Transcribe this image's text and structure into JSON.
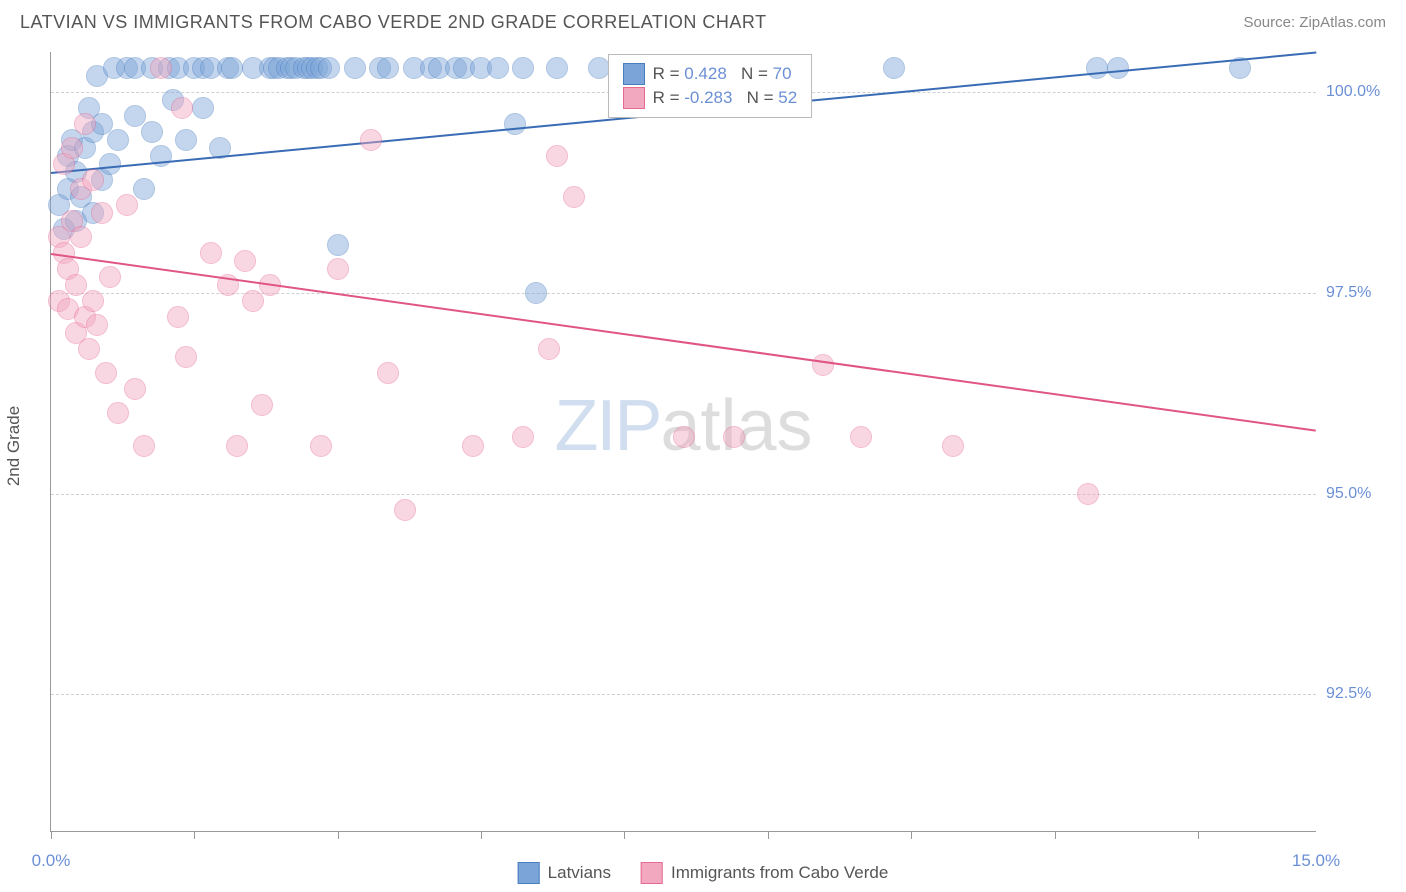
{
  "header": {
    "title": "LATVIAN VS IMMIGRANTS FROM CABO VERDE 2ND GRADE CORRELATION CHART",
    "source_label": "Source: ZipAtlas.com"
  },
  "chart": {
    "type": "scatter",
    "ylabel": "2nd Grade",
    "xlim": [
      0,
      15
    ],
    "ylim": [
      90.8,
      100.5
    ],
    "yticks": [
      92.5,
      95.0,
      97.5,
      100.0
    ],
    "ytick_labels": [
      "92.5%",
      "95.0%",
      "97.5%",
      "100.0%"
    ],
    "xticks": [
      0.0,
      1.7,
      3.4,
      5.1,
      6.8,
      8.5,
      10.2,
      11.9,
      13.6
    ],
    "xlabel_min": "0.0%",
    "xlabel_max": "15.0%",
    "background_color": "#ffffff",
    "grid_color": "#d0d0d0",
    "point_radius": 11,
    "point_opacity": 0.45,
    "watermark_zip": "ZIP",
    "watermark_atlas": "atlas",
    "series": [
      {
        "name": "Latvians",
        "color_fill": "#7ba5d8",
        "color_stroke": "#4a7cc0",
        "R": "0.428",
        "N": "70",
        "trend": {
          "x1": 0,
          "y1": 99.0,
          "x2": 15,
          "y2": 100.5,
          "color": "#3a6cb5"
        },
        "points": [
          [
            0.1,
            98.6
          ],
          [
            0.15,
            98.3
          ],
          [
            0.2,
            98.8
          ],
          [
            0.2,
            99.2
          ],
          [
            0.25,
            99.4
          ],
          [
            0.3,
            98.4
          ],
          [
            0.3,
            99.0
          ],
          [
            0.35,
            98.7
          ],
          [
            0.4,
            99.3
          ],
          [
            0.45,
            99.8
          ],
          [
            0.5,
            98.5
          ],
          [
            0.5,
            99.5
          ],
          [
            0.55,
            100.2
          ],
          [
            0.6,
            98.9
          ],
          [
            0.6,
            99.6
          ],
          [
            0.7,
            99.1
          ],
          [
            0.75,
            100.3
          ],
          [
            0.8,
            99.4
          ],
          [
            0.9,
            100.3
          ],
          [
            1.0,
            99.7
          ],
          [
            1.0,
            100.3
          ],
          [
            1.1,
            98.8
          ],
          [
            1.2,
            99.5
          ],
          [
            1.2,
            100.3
          ],
          [
            1.3,
            99.2
          ],
          [
            1.4,
            100.3
          ],
          [
            1.45,
            99.9
          ],
          [
            1.5,
            100.3
          ],
          [
            1.6,
            99.4
          ],
          [
            1.7,
            100.3
          ],
          [
            1.8,
            99.8
          ],
          [
            1.8,
            100.3
          ],
          [
            1.9,
            100.3
          ],
          [
            2.0,
            99.3
          ],
          [
            2.1,
            100.3
          ],
          [
            2.15,
            100.3
          ],
          [
            2.4,
            100.3
          ],
          [
            2.6,
            100.3
          ],
          [
            2.65,
            100.3
          ],
          [
            2.7,
            100.3
          ],
          [
            2.8,
            100.3
          ],
          [
            2.85,
            100.3
          ],
          [
            2.9,
            100.3
          ],
          [
            3.0,
            100.3
          ],
          [
            3.05,
            100.3
          ],
          [
            3.1,
            100.3
          ],
          [
            3.15,
            100.3
          ],
          [
            3.2,
            100.3
          ],
          [
            3.3,
            100.3
          ],
          [
            3.4,
            98.1
          ],
          [
            3.6,
            100.3
          ],
          [
            3.9,
            100.3
          ],
          [
            4.0,
            100.3
          ],
          [
            4.3,
            100.3
          ],
          [
            4.5,
            100.3
          ],
          [
            4.6,
            100.3
          ],
          [
            4.8,
            100.3
          ],
          [
            4.9,
            100.3
          ],
          [
            5.1,
            100.3
          ],
          [
            5.3,
            100.3
          ],
          [
            5.5,
            99.6
          ],
          [
            5.6,
            100.3
          ],
          [
            5.75,
            97.5
          ],
          [
            6.0,
            100.3
          ],
          [
            6.5,
            100.3
          ],
          [
            8.5,
            100.3
          ],
          [
            10.0,
            100.3
          ],
          [
            12.4,
            100.3
          ],
          [
            12.65,
            100.3
          ],
          [
            14.1,
            100.3
          ]
        ]
      },
      {
        "name": "Immigrants from Cabo Verde",
        "color_fill": "#f2a8bf",
        "color_stroke": "#e76a94",
        "R": "-0.283",
        "N": "52",
        "trend": {
          "x1": 0,
          "y1": 98.0,
          "x2": 15,
          "y2": 95.8,
          "color": "#e05585"
        },
        "points": [
          [
            0.1,
            98.2
          ],
          [
            0.1,
            97.4
          ],
          [
            0.15,
            98.0
          ],
          [
            0.15,
            99.1
          ],
          [
            0.2,
            97.3
          ],
          [
            0.2,
            97.8
          ],
          [
            0.25,
            98.4
          ],
          [
            0.25,
            99.3
          ],
          [
            0.3,
            97.0
          ],
          [
            0.3,
            97.6
          ],
          [
            0.35,
            98.2
          ],
          [
            0.35,
            98.8
          ],
          [
            0.4,
            97.2
          ],
          [
            0.4,
            99.6
          ],
          [
            0.45,
            96.8
          ],
          [
            0.5,
            97.4
          ],
          [
            0.5,
            98.9
          ],
          [
            0.55,
            97.1
          ],
          [
            0.6,
            98.5
          ],
          [
            0.65,
            96.5
          ],
          [
            0.7,
            97.7
          ],
          [
            0.8,
            96.0
          ],
          [
            0.9,
            98.6
          ],
          [
            1.0,
            96.3
          ],
          [
            1.1,
            95.6
          ],
          [
            1.3,
            100.3
          ],
          [
            1.5,
            97.2
          ],
          [
            1.55,
            99.8
          ],
          [
            1.6,
            96.7
          ],
          [
            1.9,
            98.0
          ],
          [
            2.1,
            97.6
          ],
          [
            2.2,
            95.6
          ],
          [
            2.3,
            97.9
          ],
          [
            2.4,
            97.4
          ],
          [
            2.5,
            96.1
          ],
          [
            2.6,
            97.6
          ],
          [
            3.2,
            95.6
          ],
          [
            3.4,
            97.8
          ],
          [
            3.8,
            99.4
          ],
          [
            4.0,
            96.5
          ],
          [
            4.2,
            94.8
          ],
          [
            5.6,
            95.7
          ],
          [
            5.9,
            96.8
          ],
          [
            6.0,
            99.2
          ],
          [
            6.2,
            98.7
          ],
          [
            7.5,
            95.7
          ],
          [
            8.1,
            95.7
          ],
          [
            9.15,
            96.6
          ],
          [
            9.6,
            95.7
          ],
          [
            10.7,
            95.6
          ],
          [
            12.3,
            95.0
          ],
          [
            5.0,
            95.6
          ]
        ]
      }
    ],
    "legend_bottom": [
      {
        "label": "Latvians",
        "fill": "#7ba5d8",
        "stroke": "#4a7cc0"
      },
      {
        "label": "Immigrants from Cabo Verde",
        "fill": "#f2a8bf",
        "stroke": "#e76a94"
      }
    ]
  }
}
